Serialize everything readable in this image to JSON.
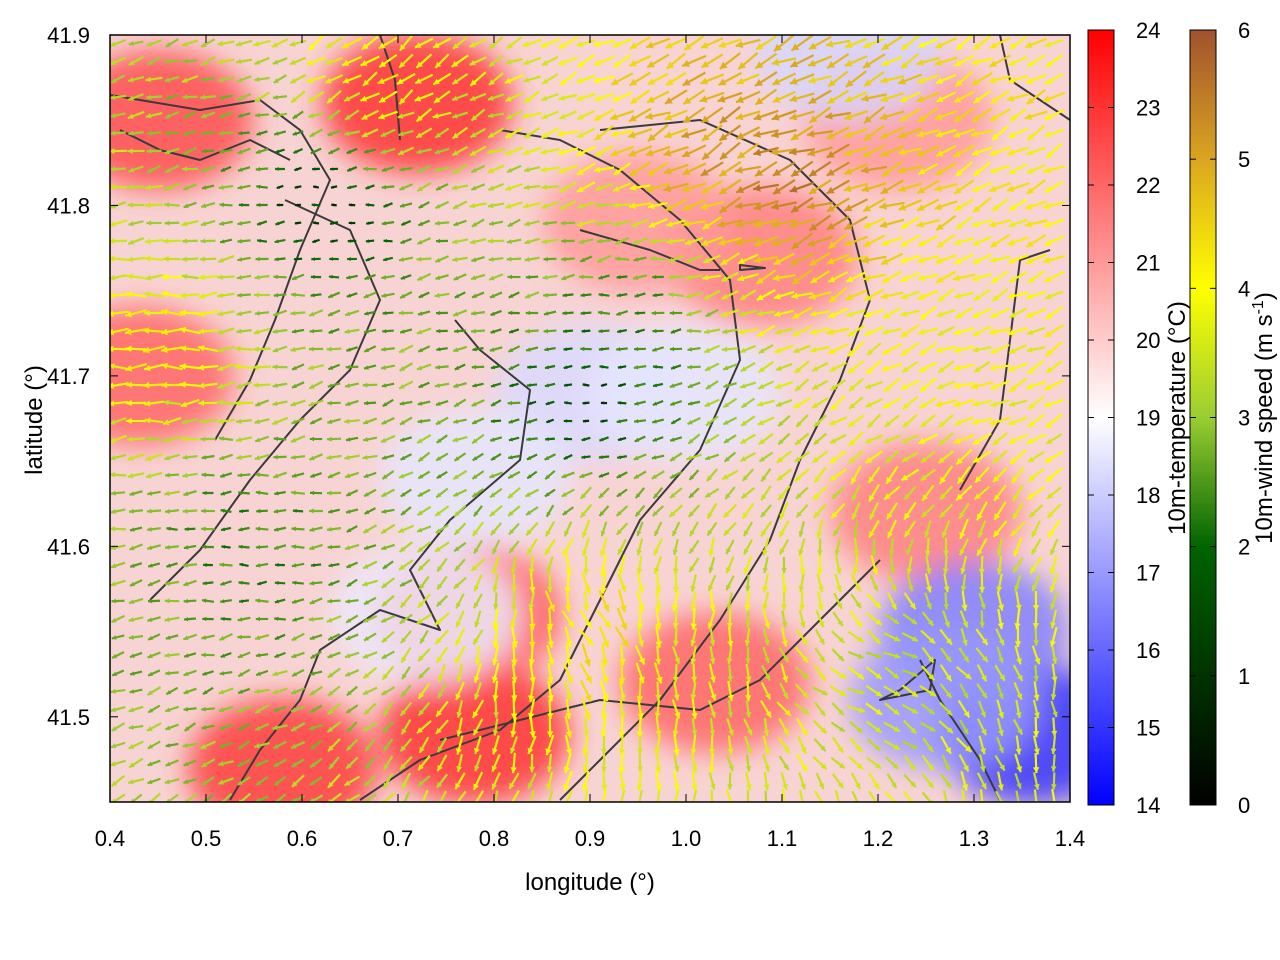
{
  "chart_data": {
    "type": "heatmap",
    "title": "",
    "xlabel": "longitude (°)",
    "ylabel": "latitude (°)",
    "xlim": [
      0.4,
      1.4
    ],
    "ylim": [
      41.45,
      41.9
    ],
    "x_ticks": [
      "0.4",
      "0.5",
      "0.6",
      "0.7",
      "0.8",
      "0.9",
      "1.0",
      "1.1",
      "1.2",
      "1.3",
      "1.4"
    ],
    "y_ticks": [
      "41.5",
      "41.6",
      "41.7",
      "41.8",
      "41.9"
    ],
    "x_tick_values": [
      0.4,
      0.5,
      0.6,
      0.7,
      0.8,
      0.9,
      1.0,
      1.1,
      1.2,
      1.3,
      1.4
    ],
    "y_tick_values": [
      41.5,
      41.6,
      41.7,
      41.8,
      41.9
    ],
    "colorbars": [
      {
        "label": "10m-temperature (°C)",
        "range": [
          14,
          24
        ],
        "ticks": [
          "14",
          "15",
          "16",
          "17",
          "18",
          "19",
          "20",
          "21",
          "22",
          "23",
          "24"
        ],
        "tick_values": [
          14,
          15,
          16,
          17,
          18,
          19,
          20,
          21,
          22,
          23,
          24
        ],
        "colors": [
          "#0000ff",
          "#ffffff",
          "#ff0000"
        ]
      },
      {
        "label": "10m-wind speed (m s",
        "label_sup": "-1",
        "label_end": ")",
        "range": [
          0,
          6
        ],
        "ticks": [
          "0",
          "1",
          "2",
          "3",
          "4",
          "5",
          "6"
        ],
        "tick_values": [
          0,
          1,
          2,
          3,
          4,
          5,
          6
        ],
        "colors": [
          "#000000",
          "#006400",
          "#9acd32",
          "#ffff00",
          "#daa520",
          "#a0522d"
        ]
      }
    ],
    "temperature_features": [
      {
        "lon": 0.45,
        "lat": 41.85,
        "temp": 22.5
      },
      {
        "lon": 0.72,
        "lat": 41.86,
        "temp": 23.0
      },
      {
        "lon": 0.78,
        "lat": 41.49,
        "temp": 23.0
      },
      {
        "lon": 0.58,
        "lat": 41.47,
        "temp": 22.8
      },
      {
        "lon": 0.43,
        "lat": 41.7,
        "temp": 22.0
      },
      {
        "lon": 0.77,
        "lat": 41.56,
        "temp": 22.5
      },
      {
        "lon": 1.03,
        "lat": 41.52,
        "temp": 22.0
      },
      {
        "lon": 1.25,
        "lat": 41.62,
        "temp": 21.5
      },
      {
        "lon": 1.22,
        "lat": 41.85,
        "temp": 21.0
      },
      {
        "lon": 1.08,
        "lat": 41.77,
        "temp": 21.5
      },
      {
        "lon": 0.9,
        "lat": 41.69,
        "temp": 18.3
      },
      {
        "lon": 0.78,
        "lat": 41.64,
        "temp": 18.5
      },
      {
        "lon": 1.0,
        "lat": 41.69,
        "temp": 18.5
      },
      {
        "lon": 0.73,
        "lat": 41.56,
        "temp": 18.6
      },
      {
        "lon": 1.36,
        "lat": 41.49,
        "temp": 15.0
      },
      {
        "lon": 1.3,
        "lat": 41.55,
        "temp": 16.5
      },
      {
        "lon": 1.27,
        "lat": 41.51,
        "temp": 17.0
      },
      {
        "lon": 1.17,
        "lat": 41.89,
        "temp": 18.2
      },
      {
        "lon": 0.95,
        "lat": 41.79,
        "temp": 21.0
      }
    ],
    "wind_features": [
      {
        "lon": 0.9,
        "lat": 41.69,
        "speed": 0.6,
        "dir": 0
      },
      {
        "lon": 0.95,
        "lat": 41.74,
        "speed": 1.5,
        "dir": 0
      },
      {
        "lon": 1.1,
        "lat": 41.81,
        "speed": 5.5,
        "dir": 20
      },
      {
        "lon": 1.02,
        "lat": 41.83,
        "speed": 5.0,
        "dir": 30
      },
      {
        "lon": 0.9,
        "lat": 41.55,
        "speed": 4.0,
        "dir": 120
      },
      {
        "lon": 0.45,
        "lat": 41.72,
        "speed": 3.8,
        "dir": 0
      },
      {
        "lon": 0.55,
        "lat": 41.6,
        "speed": 1.5,
        "dir": 0
      },
      {
        "lon": 1.3,
        "lat": 41.7,
        "speed": 3.5,
        "dir": 20
      },
      {
        "lon": 1.2,
        "lat": 41.52,
        "speed": 3.0,
        "dir": 160
      },
      {
        "lon": 0.62,
        "lat": 41.8,
        "speed": 0.5,
        "dir": 0
      },
      {
        "lon": 0.68,
        "lat": 41.88,
        "speed": 3.8,
        "dir": 40
      }
    ]
  }
}
